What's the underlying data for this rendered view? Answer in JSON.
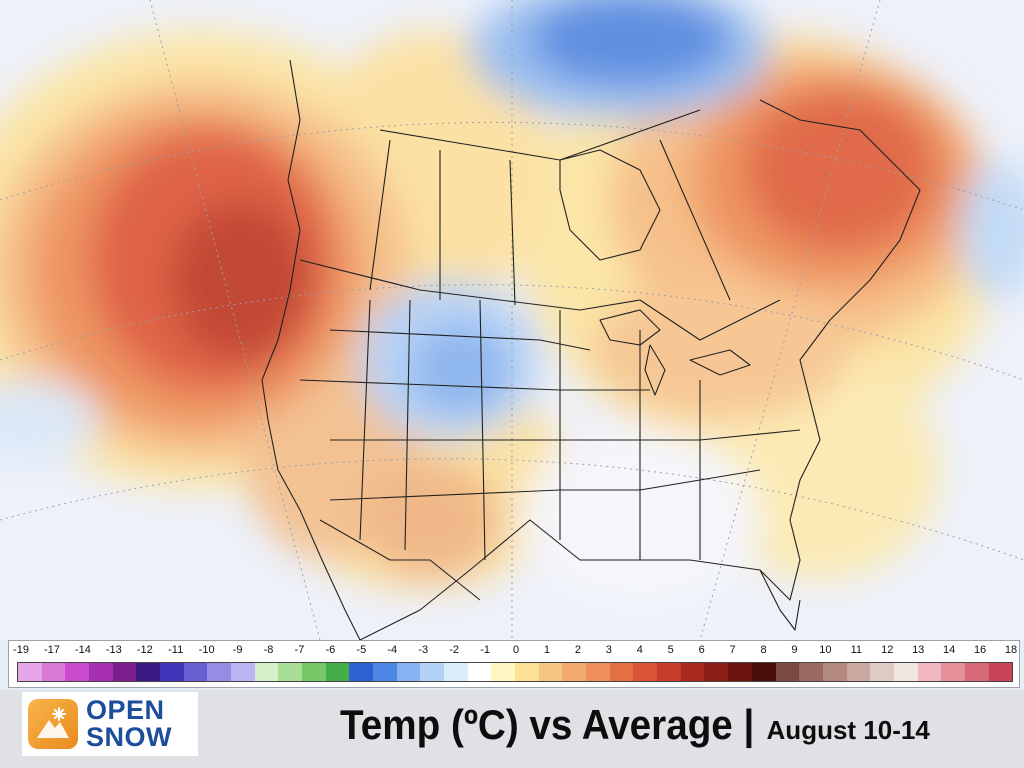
{
  "map": {
    "region": "North America",
    "anomaly_areas": [
      {
        "area": "Pacific Northwest offshore",
        "anomaly_c": 9
      },
      {
        "area": "Quebec / Labrador",
        "anomaly_c": 7
      },
      {
        "area": "Canadian Arctic",
        "anomaly_c": -4
      },
      {
        "area": "Wyoming / Colorado",
        "anomaly_c": -2
      },
      {
        "area": "Southwest US",
        "anomaly_c": 3
      },
      {
        "area": "Southeast US",
        "anomaly_c": 0
      }
    ]
  },
  "colorbar": {
    "labels": [
      "-19",
      "-17",
      "-14",
      "-13",
      "-12",
      "-11",
      "-10",
      "-9",
      "-8",
      "-7",
      "-6",
      "-5",
      "-4",
      "-3",
      "-2",
      "-1",
      "0",
      "1",
      "2",
      "3",
      "4",
      "5",
      "6",
      "7",
      "8",
      "9",
      "10",
      "11",
      "12",
      "13",
      "14",
      "16",
      "18"
    ],
    "colors": [
      "#e7a6e9",
      "#d97ad8",
      "#c84ccb",
      "#a62fb1",
      "#7c1e8e",
      "#3a1a82",
      "#3f33b8",
      "#6a5ed4",
      "#968ce6",
      "#bab4f0",
      "#d6f0cc",
      "#a9dc96",
      "#77c768",
      "#47ad49",
      "#2f61d4",
      "#4f87e4",
      "#87b2f1",
      "#b4d2f8",
      "#d9eefa",
      "#ffffff",
      "#fff6c2",
      "#fbe096",
      "#f6c783",
      "#f3ab6d",
      "#ee8e58",
      "#e67046",
      "#da5537",
      "#c73c2a",
      "#ab2a1f",
      "#8d1d17",
      "#6b130e",
      "#4a0c08",
      "#7a4a40",
      "#9a6a60",
      "#b48a80",
      "#cba8a0",
      "#e0cac4",
      "#f2e6e2",
      "#f2b8c2",
      "#e6909c",
      "#d66a78",
      "#c84456"
    ]
  },
  "logo": {
    "line1": "OPEN",
    "line2": "SNOW",
    "icon": "snowflake-mountain-icon"
  },
  "headline": {
    "main": "Temp (ºC) vs Average |",
    "date": "August 10-14"
  }
}
